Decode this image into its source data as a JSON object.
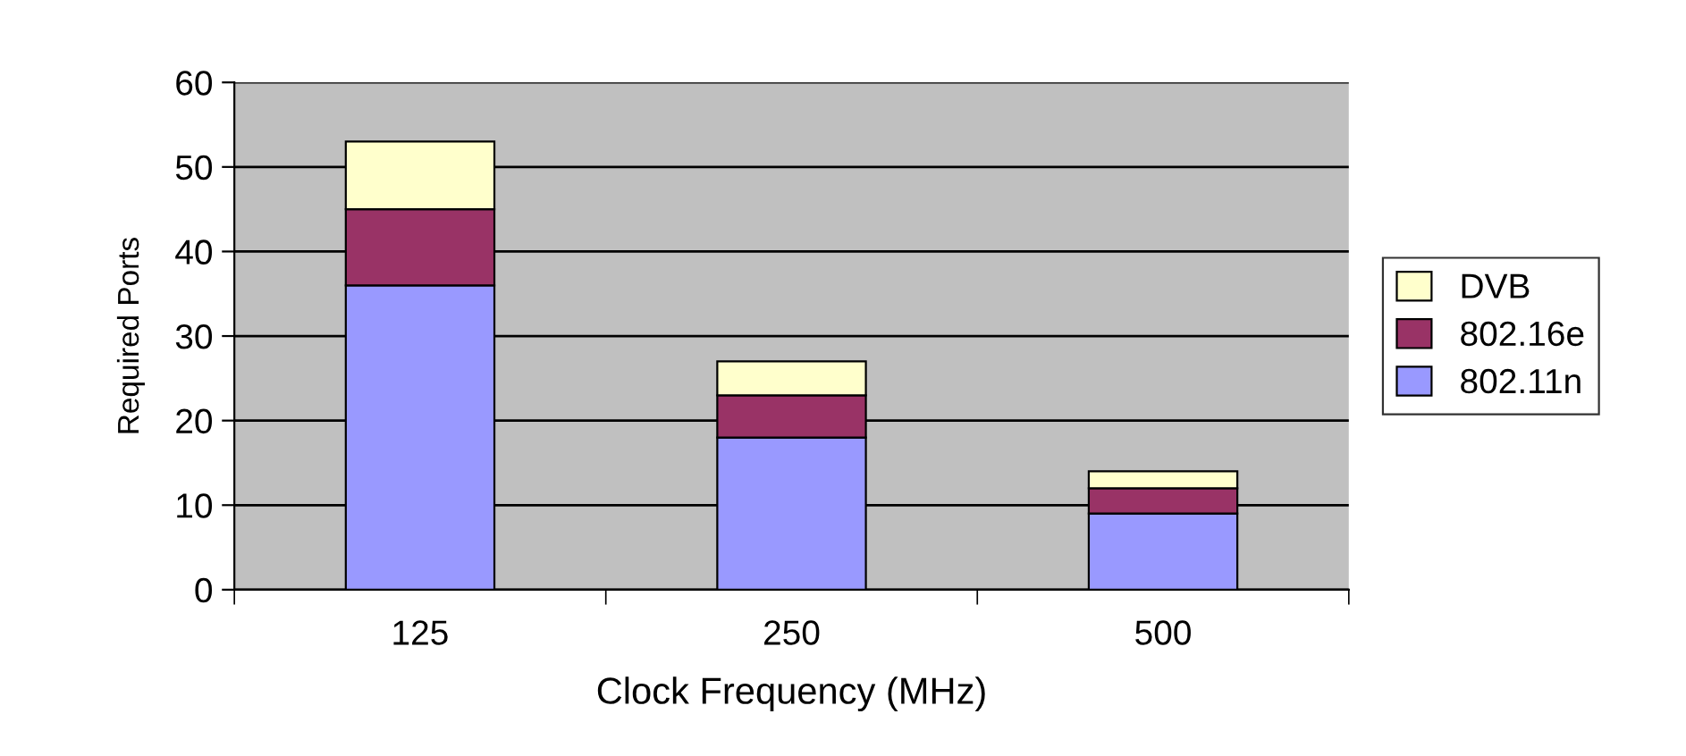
{
  "chart_data": {
    "type": "bar",
    "stacked": true,
    "xlabel": "Clock Frequency (MHz)",
    "ylabel": "Required Ports",
    "categories": [
      "125",
      "250",
      "500"
    ],
    "series": [
      {
        "name": "802.11n",
        "color": "#9999ff",
        "values": [
          36,
          18,
          9
        ]
      },
      {
        "name": "802.16e",
        "color": "#993366",
        "values": [
          9,
          5,
          3
        ]
      },
      {
        "name": "DVB",
        "color": "#ffffcc",
        "values": [
          8,
          4,
          2
        ]
      }
    ],
    "ylim": [
      0,
      60
    ],
    "yticks": [
      0,
      10,
      20,
      30,
      40,
      50,
      60
    ],
    "grid": "y",
    "legend": "right"
  }
}
